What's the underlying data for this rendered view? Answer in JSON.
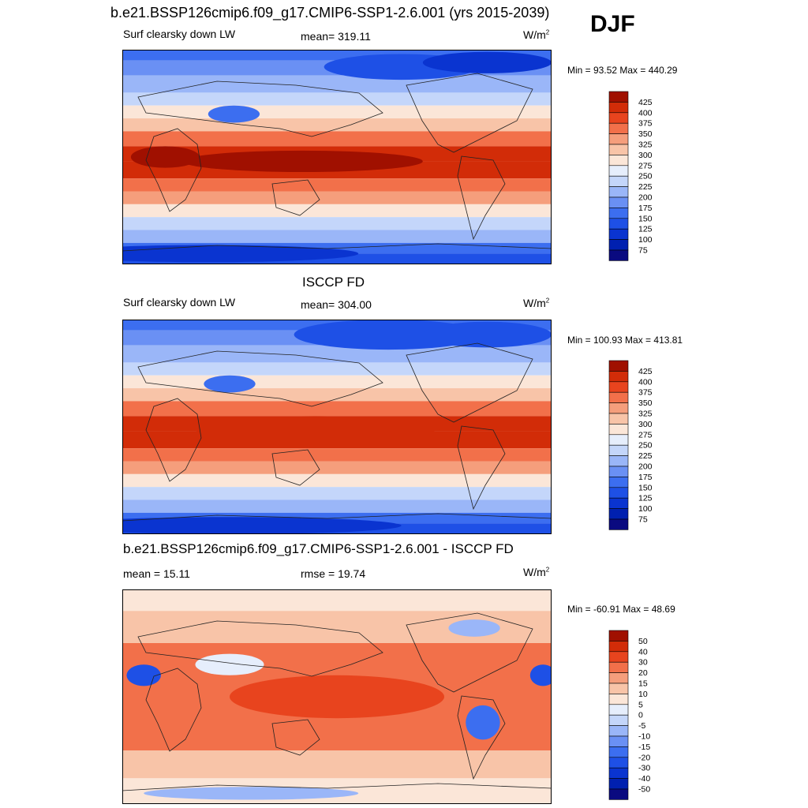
{
  "header": {
    "title": "b.e21.BSSP126cmip6.f09_g17.CMIP6-SSP1-2.6.001 (yrs 2015-2039)",
    "season": "DJF"
  },
  "panels": [
    {
      "id": "model",
      "heading": "",
      "left_label": "Surf clearsky down LW",
      "center_label": "mean= 319.11",
      "units_base": "W/m",
      "units_sup": "2",
      "minmax": "Min =  93.52 Max = 440.29"
    },
    {
      "id": "obs",
      "heading": "ISCCP FD",
      "left_label": "Surf clearsky down LW",
      "center_label": "mean= 304.00",
      "units_base": "W/m",
      "units_sup": "2",
      "minmax": "Min = 100.93 Max = 413.81"
    },
    {
      "id": "diff",
      "heading": "b.e21.BSSP126cmip6.f09_g17.CMIP6-SSP1-2.6.001 - ISCCP FD",
      "left_label": "mean =  15.11",
      "center_label": "rmse =  19.74",
      "units_base": "W/m",
      "units_sup": "2",
      "minmax": "Min = -60.91 Max =  48.69"
    }
  ],
  "chart_data": [
    {
      "type": "heatmap",
      "title": "Surf clearsky down LW",
      "colorbar_levels": [
        75,
        100,
        125,
        150,
        175,
        200,
        225,
        250,
        275,
        300,
        325,
        350,
        375,
        400,
        425
      ],
      "colorbar_colors": [
        "#0a0a80",
        "#0020b0",
        "#0a34d0",
        "#1e50e6",
        "#3c6ef0",
        "#6a90f4",
        "#9ab6f8",
        "#c4d6fa",
        "#e6eefc",
        "#fbe6d8",
        "#f8c4a8",
        "#f59e7c",
        "#f2704a",
        "#e8441e",
        "#d22c08",
        "#a01000"
      ]
    },
    {
      "type": "heatmap",
      "title": "Surf clearsky down LW",
      "colorbar_levels": [
        75,
        100,
        125,
        150,
        175,
        200,
        225,
        250,
        275,
        300,
        325,
        350,
        375,
        400,
        425
      ],
      "colorbar_colors": [
        "#0a0a80",
        "#0020b0",
        "#0a34d0",
        "#1e50e6",
        "#3c6ef0",
        "#6a90f4",
        "#9ab6f8",
        "#c4d6fa",
        "#e6eefc",
        "#fbe6d8",
        "#f8c4a8",
        "#f59e7c",
        "#f2704a",
        "#e8441e",
        "#d22c08",
        "#a01000"
      ]
    },
    {
      "type": "heatmap",
      "title": "",
      "colorbar_levels": [
        -50,
        -40,
        -30,
        -20,
        -15,
        -10,
        -5,
        0,
        5,
        10,
        15,
        20,
        30,
        40,
        50
      ],
      "colorbar_colors": [
        "#0a0a80",
        "#0020b0",
        "#0a34d0",
        "#1e50e6",
        "#3c6ef0",
        "#6a90f4",
        "#9ab6f8",
        "#c4d6fa",
        "#e6eefc",
        "#fbe6d8",
        "#f8c4a8",
        "#f59e7c",
        "#f2704a",
        "#e8441e",
        "#d22c08",
        "#a01000"
      ]
    }
  ]
}
